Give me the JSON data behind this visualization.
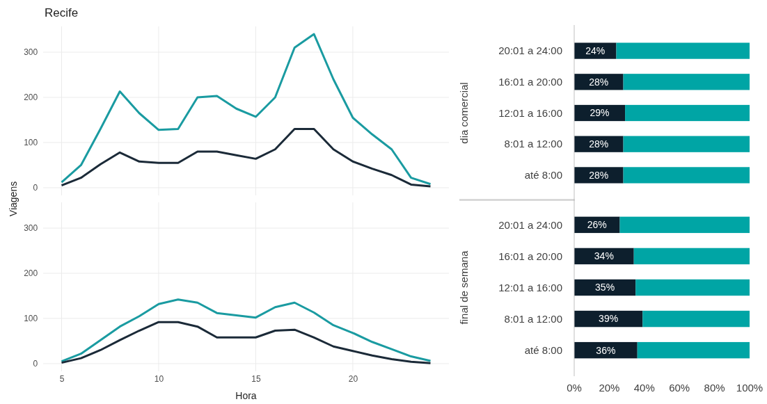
{
  "chart_data": [
    {
      "type": "line",
      "title": "Recife",
      "ylabel": "Viagens",
      "x": [
        5,
        6,
        7,
        8,
        9,
        10,
        11,
        12,
        13,
        14,
        15,
        16,
        17,
        18,
        19,
        20,
        21,
        22,
        23,
        24
      ],
      "xlim": [
        4.05,
        24.95
      ],
      "ylim": [
        -17,
        357
      ],
      "xticks": [
        5,
        10,
        15,
        20
      ],
      "yticks": [
        0,
        100,
        200,
        300
      ],
      "grid": true,
      "tick_labels": "y",
      "series": [
        {
          "color": "#1a9ba1",
          "values": [
            12,
            50,
            130,
            213,
            165,
            128,
            130,
            200,
            203,
            175,
            157,
            200,
            310,
            340,
            240,
            155,
            118,
            85,
            22,
            8
          ]
        },
        {
          "color": "#1b2a38",
          "values": [
            5,
            22,
            52,
            78,
            58,
            55,
            55,
            80,
            80,
            72,
            64,
            85,
            130,
            130,
            85,
            58,
            42,
            28,
            7,
            3
          ]
        }
      ]
    },
    {
      "type": "line",
      "xlabel": "Hora",
      "x": [
        5,
        6,
        7,
        8,
        9,
        10,
        11,
        12,
        13,
        14,
        15,
        16,
        17,
        18,
        19,
        20,
        21,
        22,
        23,
        24
      ],
      "xlim": [
        4.05,
        24.95
      ],
      "ylim": [
        -17,
        357
      ],
      "xticks": [
        5,
        10,
        15,
        20
      ],
      "yticks": [
        0,
        100,
        200,
        300
      ],
      "grid": true,
      "series": [
        {
          "color": "#1a9ba1",
          "values": [
            5,
            22,
            52,
            82,
            105,
            132,
            142,
            135,
            112,
            107,
            102,
            125,
            135,
            113,
            85,
            68,
            48,
            32,
            16,
            6
          ]
        },
        {
          "color": "#1b2a38",
          "values": [
            2,
            12,
            30,
            52,
            73,
            92,
            92,
            82,
            58,
            58,
            58,
            73,
            75,
            58,
            38,
            28,
            18,
            10,
            4,
            1
          ]
        }
      ]
    },
    {
      "type": "bar",
      "orientation": "horizontal",
      "stacked": true,
      "ylabel": "dia comercial",
      "categories": [
        "20:01 a 24:00",
        "16:01 a 20:00",
        "12:01 a 16:00",
        "8:01 a 12:00",
        "até 8:00"
      ],
      "xlim": [
        0,
        100
      ],
      "tick_labels": "y",
      "series": [
        {
          "color": "#0d1f2d",
          "values": [
            24,
            28,
            29,
            28,
            28
          ],
          "value_labels": [
            "24%",
            "28%",
            "29%",
            "28%",
            "28%"
          ]
        },
        {
          "color": "#00a5a5",
          "values": [
            76,
            72,
            71,
            72,
            72
          ]
        }
      ]
    },
    {
      "type": "bar",
      "orientation": "horizontal",
      "stacked": true,
      "ylabel": "final de semana",
      "categories": [
        "20:01 a 24:00",
        "16:01 a 20:00",
        "12:01 a 16:00",
        "8:01 a 12:00",
        "até 8:00"
      ],
      "xlim": [
        0,
        100
      ],
      "xticks": [
        {
          "value": 0,
          "label": "0%"
        },
        {
          "value": 20,
          "label": "20%"
        },
        {
          "value": 40,
          "label": "40%"
        },
        {
          "value": 60,
          "label": "60%"
        },
        {
          "value": 80,
          "label": "80%"
        },
        {
          "value": 100,
          "label": "100%"
        }
      ],
      "series": [
        {
          "color": "#0d1f2d",
          "values": [
            26,
            34,
            35,
            39,
            36
          ],
          "value_labels": [
            "26%",
            "34%",
            "35%",
            "39%",
            "36%"
          ]
        },
        {
          "color": "#00a5a5",
          "values": [
            74,
            66,
            65,
            61,
            64
          ]
        }
      ]
    }
  ]
}
